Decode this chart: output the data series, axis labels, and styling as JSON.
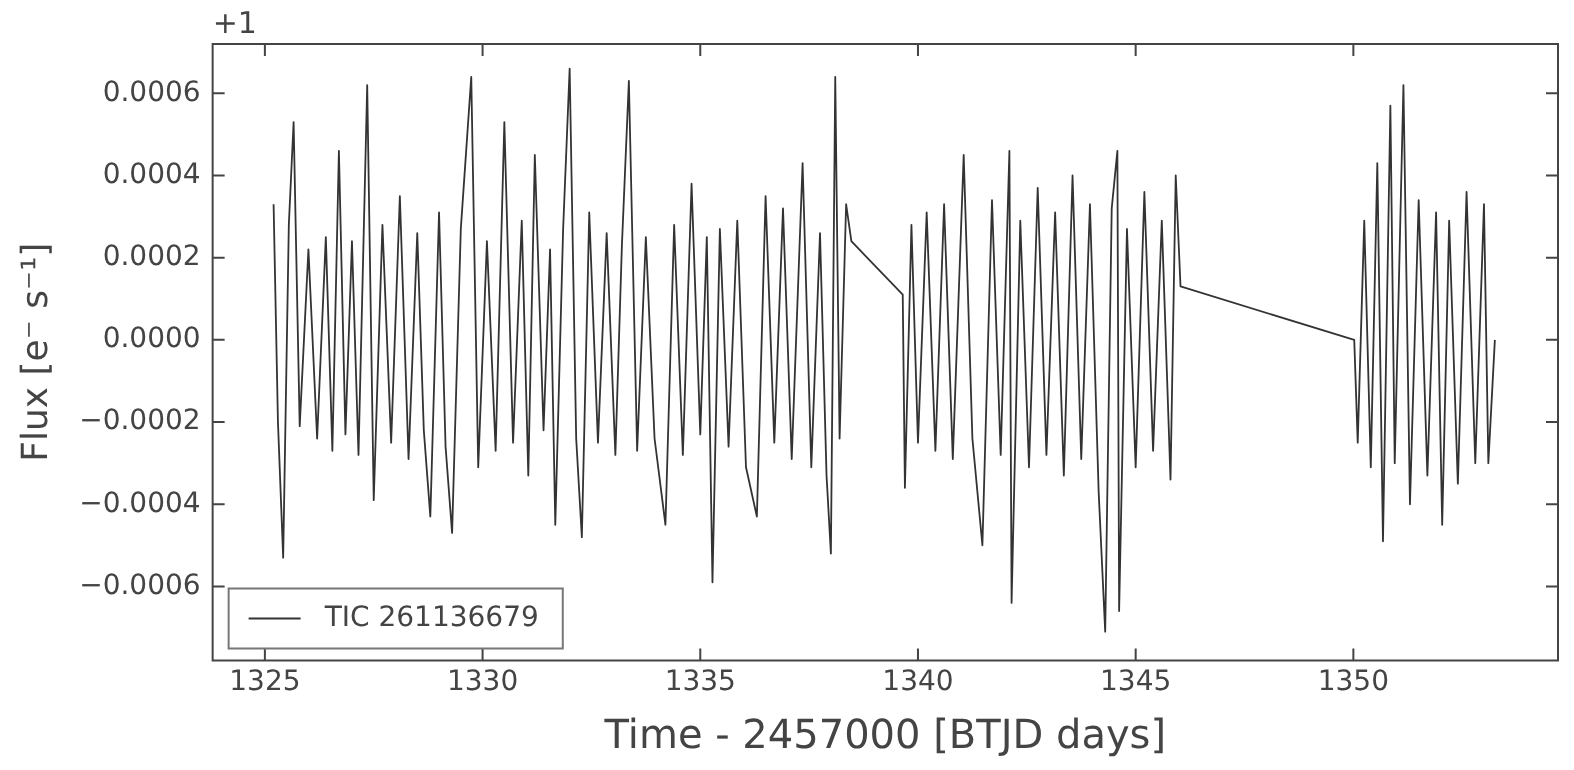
{
  "chart_data": {
    "type": "line",
    "xlabel": "Time - 2457000 [BTJD days]",
    "ylabel": "Flux [e⁻ s⁻¹]",
    "annotations": [
      "+1"
    ],
    "xlim": [
      1323.8,
      1354.7
    ],
    "xticks": [
      1325,
      1330,
      1335,
      1340,
      1345,
      1350
    ],
    "ylim": [
      -0.00078,
      0.00072
    ],
    "yticks": [
      {
        "value": -0.0006,
        "label": "−0.0006"
      },
      {
        "value": -0.0004,
        "label": "−0.0004"
      },
      {
        "value": -0.0002,
        "label": "−0.0002"
      },
      {
        "value": 0,
        "label": "0.0000"
      },
      {
        "value": 0.0002,
        "label": "0.0002"
      },
      {
        "value": 0.0004,
        "label": "0.0004"
      },
      {
        "value": 0.0006,
        "label": "0.0006"
      }
    ],
    "grid": false,
    "legend": "bottom left",
    "marker": "none",
    "line_style": "solid",
    "series": [
      {
        "name": "TIC 261136679",
        "color": "#333333",
        "x": [
          1325.2,
          1325.3,
          1325.42,
          1325.55,
          1325.66,
          1325.8,
          1326.0,
          1326.2,
          1326.4,
          1326.55,
          1326.7,
          1326.85,
          1327.0,
          1327.15,
          1327.35,
          1327.5,
          1327.7,
          1327.9,
          1328.1,
          1328.3,
          1328.5,
          1328.65,
          1328.8,
          1329.0,
          1329.15,
          1329.3,
          1329.5,
          1329.74,
          1329.9,
          1330.1,
          1330.3,
          1330.5,
          1330.7,
          1330.9,
          1331.05,
          1331.2,
          1331.4,
          1331.55,
          1331.67,
          1331.85,
          1332.0,
          1332.15,
          1332.28,
          1332.45,
          1332.65,
          1332.85,
          1333.05,
          1333.2,
          1333.36,
          1333.55,
          1333.75,
          1333.95,
          1334.2,
          1334.4,
          1334.6,
          1334.8,
          1335.0,
          1335.15,
          1335.28,
          1335.45,
          1335.65,
          1335.85,
          1336.05,
          1336.3,
          1336.5,
          1336.7,
          1336.9,
          1337.1,
          1337.35,
          1337.55,
          1337.75,
          1337.9,
          1338.0,
          1338.1,
          1338.2,
          1338.35,
          1338.47,
          1339.65,
          1339.7,
          1339.85,
          1340.0,
          1340.2,
          1340.4,
          1340.6,
          1340.8,
          1341.05,
          1341.25,
          1341.48,
          1341.7,
          1341.9,
          1342.1,
          1342.15,
          1342.35,
          1342.55,
          1342.75,
          1342.95,
          1343.15,
          1343.35,
          1343.55,
          1343.75,
          1343.95,
          1344.15,
          1344.3,
          1344.45,
          1344.58,
          1344.62,
          1344.8,
          1345.0,
          1345.2,
          1345.4,
          1345.6,
          1345.8,
          1345.92,
          1346.03,
          1350.02,
          1350.1,
          1350.25,
          1350.4,
          1350.55,
          1350.68,
          1350.85,
          1350.95,
          1351.15,
          1351.3,
          1351.5,
          1351.7,
          1351.9,
          1352.04,
          1352.2,
          1352.4,
          1352.6,
          1352.8,
          1353.0,
          1353.1,
          1353.25
        ],
        "values": [
          0.00033,
          -0.0002,
          -0.00053,
          0.00028,
          0.00053,
          -0.00021,
          0.00022,
          -0.00024,
          0.00025,
          -0.00027,
          0.00046,
          -0.00023,
          0.00024,
          -0.00028,
          0.00062,
          -0.00039,
          0.00028,
          -0.00025,
          0.00035,
          -0.00029,
          0.00026,
          -0.00022,
          -0.00043,
          0.00031,
          -0.00026,
          -0.00047,
          0.00027,
          0.00064,
          -0.00031,
          0.00024,
          -0.00027,
          0.00053,
          -0.00025,
          0.00029,
          -0.00033,
          0.00045,
          -0.00022,
          0.00022,
          -0.00045,
          0.00027,
          0.00066,
          -0.00024,
          -0.00048,
          0.00031,
          -0.00025,
          0.00026,
          -0.00028,
          0.00023,
          0.00063,
          -0.00027,
          0.00025,
          -0.00024,
          -0.00045,
          0.00028,
          -0.00028,
          0.00038,
          -0.00023,
          0.00025,
          -0.00059,
          0.00027,
          -0.00026,
          0.00029,
          -0.00031,
          -0.00043,
          0.00035,
          -0.00025,
          0.00032,
          -0.00029,
          0.00043,
          -0.00031,
          0.00026,
          -0.00033,
          -0.00052,
          0.00064,
          -0.00024,
          0.00033,
          0.00024,
          0.00011,
          -0.00036,
          0.00028,
          -0.00025,
          0.00031,
          -0.00027,
          0.00033,
          -0.00029,
          0.00045,
          -0.00024,
          -0.0005,
          0.00034,
          -0.00028,
          0.00046,
          -0.00064,
          0.00029,
          -0.00031,
          0.00037,
          -0.00028,
          0.00031,
          -0.00033,
          0.0004,
          -0.00029,
          0.00033,
          -0.00037,
          -0.00071,
          0.00032,
          0.00046,
          -0.00066,
          0.00027,
          -0.00031,
          0.00036,
          -0.00027,
          0.00029,
          -0.00034,
          0.0004,
          0.00013,
          0,
          -0.00025,
          0.00029,
          -0.00031,
          0.00043,
          -0.00049,
          0.00057,
          -0.0003,
          0.00062,
          -0.0004,
          0.00034,
          -0.00033,
          0.00031,
          -0.00045,
          0.00029,
          -0.00035,
          0.00036,
          -0.0003,
          0.00033,
          -0.0003,
          0
        ]
      }
    ]
  }
}
